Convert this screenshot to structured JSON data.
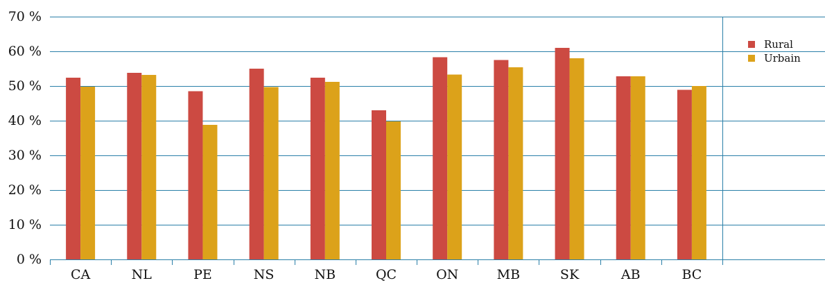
{
  "chart_data": {
    "type": "bar",
    "title": "",
    "xlabel": "",
    "ylabel": "",
    "ylim": [
      0,
      70
    ],
    "yticks": [
      0,
      10,
      20,
      30,
      40,
      50,
      60,
      70
    ],
    "ytick_labels": [
      "0 %",
      "10 %",
      "20 %",
      "30 %",
      "40 %",
      "50 %",
      "60 %",
      "70 %"
    ],
    "grid": true,
    "legend_position": "right",
    "categories": [
      "CA",
      "NL",
      "PE",
      "NS",
      "NB",
      "QC",
      "ON",
      "MB",
      "SK",
      "AB",
      "BC"
    ],
    "series": [
      {
        "name": "Rural",
        "color": "#cc4a42",
        "values": [
          52.4,
          53.8,
          48.5,
          55.0,
          52.4,
          43.0,
          58.3,
          57.5,
          61.0,
          52.8,
          48.9
        ]
      },
      {
        "name": "Urbain",
        "color": "#dca21a",
        "values": [
          49.8,
          53.2,
          38.8,
          49.7,
          51.2,
          39.8,
          53.3,
          55.4,
          58.0,
          52.8,
          50.0
        ]
      }
    ],
    "grid_color": "#2a7fa8"
  }
}
